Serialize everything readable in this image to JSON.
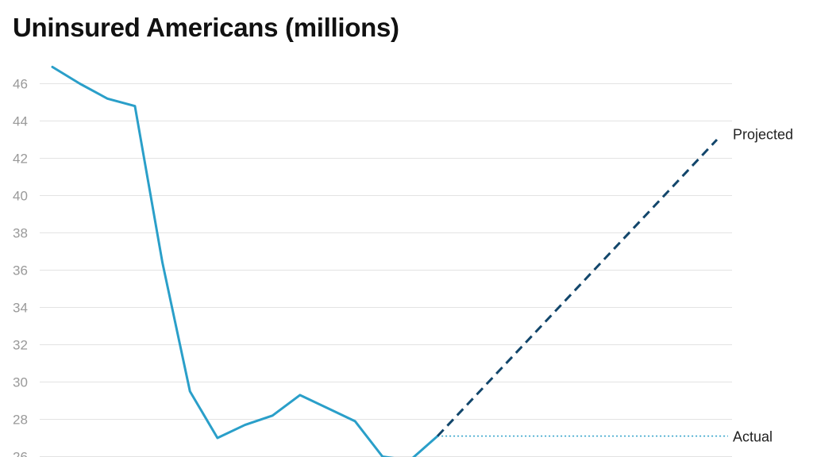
{
  "chart_data": {
    "type": "line",
    "title": "Uninsured Americans (millions)",
    "xlabel": "",
    "ylabel": "",
    "ylim": [
      26,
      47
    ],
    "y_ticks": [
      26,
      28,
      30,
      32,
      34,
      36,
      38,
      40,
      42,
      44,
      46
    ],
    "grid": true,
    "colors": {
      "historical": "#2a9fc9",
      "projected": "#12466b",
      "actual": "#2a9fc9",
      "grid": "#e3e3e3"
    },
    "series": [
      {
        "values": [
          46.9,
          46.0,
          45.2,
          44.8,
          36.4,
          29.5,
          27.0,
          27.7,
          28.2,
          29.3,
          28.6,
          27.9,
          26.0,
          25.8,
          27.1
        ]
      },
      {
        "name": "Projected",
        "style": "dashed",
        "start_index": 14,
        "values": [
          27.1,
          43.0
        ]
      },
      {
        "name": "Actual",
        "style": "dotted",
        "start_index": 14,
        "values": [
          27.1,
          27.1
        ]
      }
    ]
  }
}
